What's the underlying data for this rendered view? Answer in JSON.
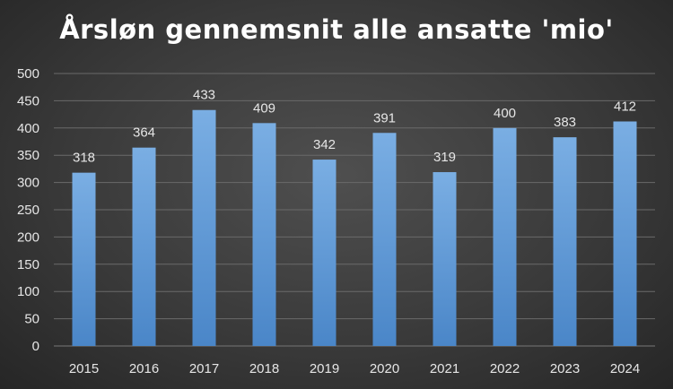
{
  "chart_data": {
    "type": "bar",
    "title": "Årsløn gennemsnit alle ansatte 'mio'",
    "xlabel": "",
    "ylabel": "",
    "categories": [
      "2015",
      "2016",
      "2017",
      "2018",
      "2019",
      "2020",
      "2021",
      "2022",
      "2023",
      "2024"
    ],
    "values": [
      318,
      364,
      433,
      409,
      342,
      391,
      319,
      400,
      383,
      412
    ],
    "ylim": [
      0,
      500
    ],
    "yticks": [
      0,
      50,
      100,
      150,
      200,
      250,
      300,
      350,
      400,
      450,
      500
    ],
    "grid": true,
    "legend": "none",
    "data_labels": true,
    "colors": {
      "bar_top": "#7aaee3",
      "bar_bottom": "#4a86c8",
      "grid": "#6a6a6a",
      "text": "#e6e6e6",
      "title": "#ffffff"
    }
  }
}
